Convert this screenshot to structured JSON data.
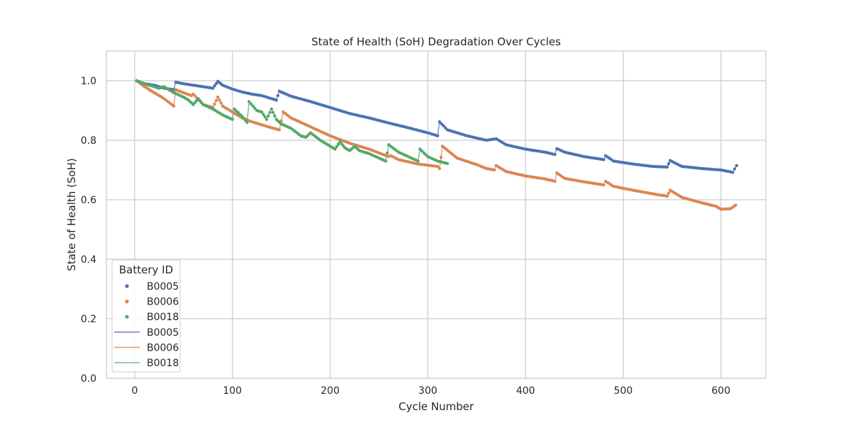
{
  "chart_data": {
    "type": "line",
    "title": "State of Health (SoH) Degradation Over Cycles",
    "xlabel": "Cycle Number",
    "ylabel": "State of Health (SoH)",
    "xlim": [
      -29,
      646
    ],
    "ylim": [
      0.0,
      1.1
    ],
    "xticks": [
      0,
      100,
      200,
      300,
      400,
      500,
      600
    ],
    "yticks": [
      0.0,
      0.2,
      0.4,
      0.6,
      0.8,
      1.0
    ],
    "grid": true,
    "legend": {
      "title": "Battery ID",
      "position": "lower-left",
      "marker_entries": [
        "B0005",
        "B0006",
        "B0018"
      ],
      "line_entries": [
        "B0005",
        "B0006",
        "B0018"
      ]
    },
    "colors": {
      "B0005": "#4c72b0",
      "B0006": "#dd8452",
      "B0018": "#55a868",
      "grid": "#cccccc",
      "axes_edge": "#cccccc"
    },
    "series": [
      {
        "name": "B0005",
        "x": [
          2,
          10,
          20,
          30,
          40,
          42,
          50,
          60,
          70,
          80,
          85,
          90,
          100,
          110,
          120,
          130,
          140,
          145,
          148,
          160,
          180,
          200,
          220,
          240,
          260,
          280,
          300,
          310,
          312,
          320,
          340,
          360,
          370,
          380,
          400,
          420,
          430,
          432,
          440,
          460,
          480,
          482,
          490,
          510,
          530,
          545,
          548,
          560,
          580,
          600,
          608,
          612,
          616
        ],
        "y": [
          1.0,
          0.99,
          0.985,
          0.975,
          0.97,
          0.995,
          0.99,
          0.985,
          0.98,
          0.975,
          0.998,
          0.985,
          0.972,
          0.962,
          0.955,
          0.95,
          0.94,
          0.935,
          0.965,
          0.948,
          0.93,
          0.91,
          0.89,
          0.875,
          0.858,
          0.842,
          0.825,
          0.815,
          0.862,
          0.835,
          0.815,
          0.8,
          0.805,
          0.785,
          0.77,
          0.76,
          0.752,
          0.772,
          0.76,
          0.745,
          0.735,
          0.748,
          0.73,
          0.72,
          0.712,
          0.71,
          0.732,
          0.712,
          0.705,
          0.7,
          0.695,
          0.692,
          0.715
        ]
      },
      {
        "name": "B0006",
        "x": [
          2,
          8,
          15,
          20,
          30,
          38,
          40,
          42,
          50,
          58,
          60,
          70,
          80,
          85,
          90,
          100,
          110,
          120,
          130,
          140,
          148,
          152,
          160,
          180,
          200,
          220,
          240,
          260,
          262,
          270,
          290,
          310,
          312,
          315,
          330,
          350,
          360,
          368,
          370,
          380,
          400,
          420,
          430,
          432,
          440,
          460,
          480,
          482,
          490,
          510,
          530,
          545,
          548,
          560,
          580,
          595,
          600,
          610,
          615
        ],
        "y": [
          1.0,
          0.985,
          0.97,
          0.96,
          0.94,
          0.92,
          0.915,
          0.97,
          0.96,
          0.95,
          0.955,
          0.92,
          0.91,
          0.945,
          0.915,
          0.895,
          0.875,
          0.862,
          0.852,
          0.842,
          0.835,
          0.895,
          0.875,
          0.845,
          0.815,
          0.79,
          0.77,
          0.745,
          0.748,
          0.735,
          0.72,
          0.712,
          0.705,
          0.78,
          0.74,
          0.718,
          0.705,
          0.7,
          0.715,
          0.695,
          0.68,
          0.67,
          0.662,
          0.69,
          0.672,
          0.66,
          0.65,
          0.662,
          0.645,
          0.632,
          0.62,
          0.612,
          0.632,
          0.608,
          0.59,
          0.578,
          0.568,
          0.57,
          0.582
        ]
      },
      {
        "name": "B0018",
        "x": [
          2,
          10,
          20,
          25,
          30,
          35,
          40,
          50,
          55,
          60,
          65,
          70,
          80,
          90,
          100,
          102,
          110,
          115,
          117,
          125,
          130,
          135,
          140,
          145,
          150,
          160,
          170,
          175,
          180,
          190,
          200,
          205,
          210,
          215,
          220,
          225,
          230,
          240,
          250,
          257,
          260,
          270,
          280,
          290,
          292,
          300,
          310,
          320
        ],
        "y": [
          1.0,
          0.99,
          0.98,
          0.975,
          0.98,
          0.97,
          0.96,
          0.945,
          0.935,
          0.92,
          0.94,
          0.92,
          0.905,
          0.885,
          0.87,
          0.905,
          0.88,
          0.86,
          0.93,
          0.9,
          0.895,
          0.87,
          0.905,
          0.87,
          0.855,
          0.84,
          0.815,
          0.81,
          0.825,
          0.8,
          0.78,
          0.77,
          0.795,
          0.775,
          0.765,
          0.78,
          0.765,
          0.755,
          0.74,
          0.73,
          0.785,
          0.76,
          0.745,
          0.73,
          0.77,
          0.745,
          0.73,
          0.722
        ]
      }
    ]
  }
}
